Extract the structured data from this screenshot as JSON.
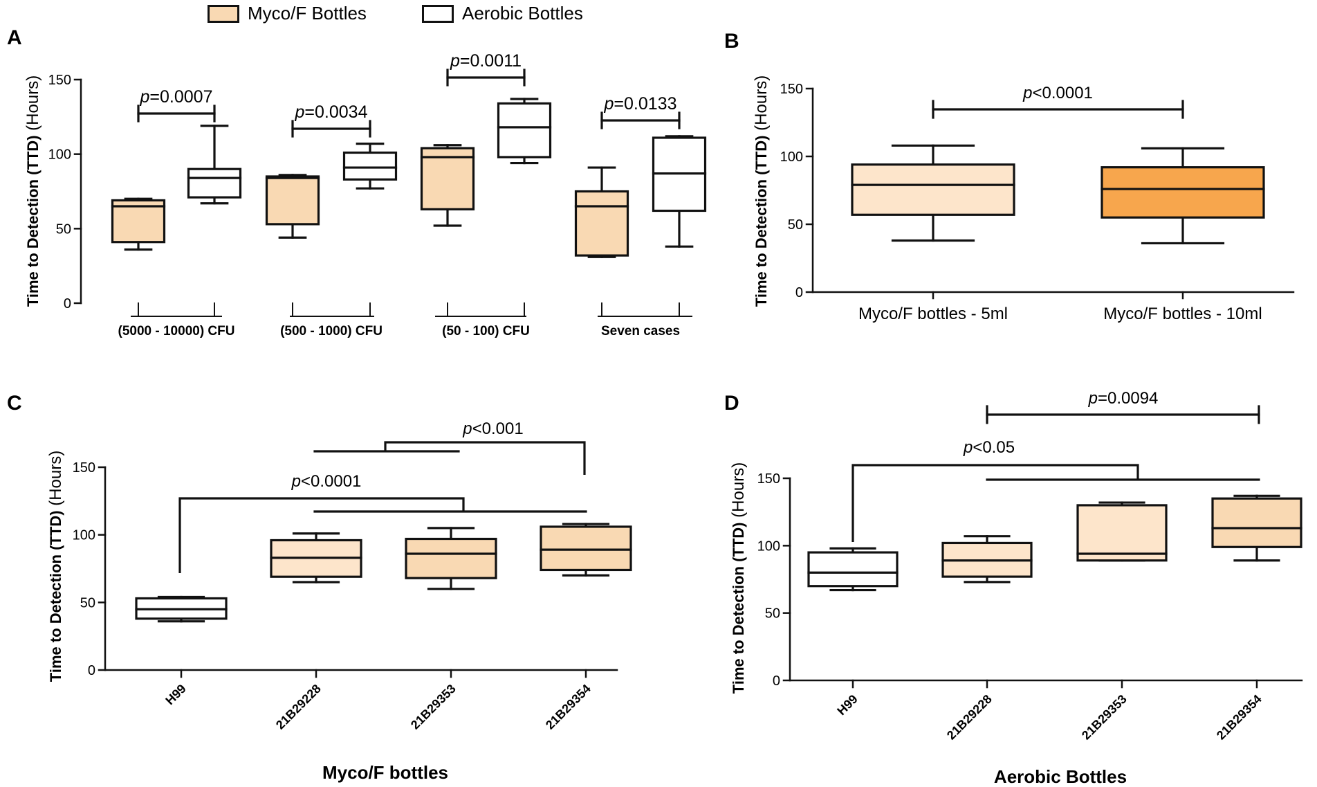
{
  "legend": [
    {
      "label": "Myco/F Bottles",
      "color": "#f9d9b3"
    },
    {
      "label": "Aerobic Bottles",
      "color": "#ffffff"
    }
  ],
  "panel_labels": [
    "A",
    "B",
    "C",
    "D"
  ],
  "colors": {
    "myco_light": "#fde5cb",
    "myco_mid": "#f9d9b3",
    "myco_strong": "#f7a64d",
    "aerobic": "#ffffff",
    "stroke": "#111111"
  },
  "chart_data": [
    {
      "panel": "A",
      "type": "boxplot",
      "ylabel_bold": "Time to Detection (TTD)",
      "ylabel_unit": " (Hours)",
      "ylim": [
        0,
        150
      ],
      "yticks": [
        0,
        50,
        100,
        150
      ],
      "groups": [
        {
          "label": "(5000 - 10000) CFU",
          "p_value": "=0.0007",
          "boxes": [
            {
              "series": "Myco/F Bottles",
              "min": 36,
              "q1": 41,
              "median": 65,
              "q3": 69,
              "max": 70
            },
            {
              "series": "Aerobic Bottles",
              "min": 67,
              "q1": 71,
              "median": 84,
              "q3": 90,
              "max": 119
            }
          ]
        },
        {
          "label": "(500 - 1000) CFU",
          "p_value": "=0.0034",
          "boxes": [
            {
              "series": "Myco/F Bottles",
              "min": 44,
              "q1": 53,
              "median": 84,
              "q3": 85,
              "max": 86
            },
            {
              "series": "Aerobic Bottles",
              "min": 77,
              "q1": 83,
              "median": 91,
              "q3": 101,
              "max": 107
            }
          ]
        },
        {
          "label": "(50 - 100) CFU",
          "p_value": "=0.0011",
          "boxes": [
            {
              "series": "Myco/F Bottles",
              "min": 52,
              "q1": 63,
              "median": 98,
              "q3": 104,
              "max": 106
            },
            {
              "series": "Aerobic Bottles",
              "min": 94,
              "q1": 98,
              "median": 118,
              "q3": 134,
              "max": 137
            }
          ]
        },
        {
          "label": "Seven cases",
          "p_value": "=0.0133",
          "boxes": [
            {
              "series": "Myco/F Bottles",
              "min": 31,
              "q1": 32,
              "median": 65,
              "q3": 75,
              "max": 91
            },
            {
              "series": "Aerobic Bottles",
              "min": 38,
              "q1": 62,
              "median": 87,
              "q3": 111,
              "max": 112
            }
          ]
        }
      ]
    },
    {
      "panel": "B",
      "type": "boxplot",
      "ylabel_bold": "Time to Detection (TTD)",
      "ylabel_unit": " (Hours)",
      "ylim": [
        0,
        150
      ],
      "yticks": [
        0,
        50,
        100,
        150
      ],
      "categories": [
        "Myco/F bottles - 5ml",
        "Myco/F bottles - 10ml"
      ],
      "boxes": [
        {
          "min": 38,
          "q1": 57,
          "median": 79,
          "q3": 94,
          "max": 108
        },
        {
          "min": 36,
          "q1": 55,
          "median": 76,
          "q3": 92,
          "max": 106
        }
      ],
      "p_value": "<0.0001"
    },
    {
      "panel": "C",
      "type": "boxplot",
      "ylabel_bold": "Time to Detection (TTD)",
      "ylabel_unit": " (Hours)",
      "xlabel": "Myco/F bottles",
      "ylim": [
        0,
        150
      ],
      "yticks": [
        0,
        50,
        100,
        150
      ],
      "categories": [
        "H99",
        "21B29228",
        "21B29353",
        "21B29354"
      ],
      "boxes": [
        {
          "min": 36,
          "q1": 38,
          "median": 45,
          "q3": 53,
          "max": 54
        },
        {
          "min": 65,
          "q1": 69,
          "median": 83,
          "q3": 96,
          "max": 101
        },
        {
          "min": 60,
          "q1": 68,
          "median": 86,
          "q3": 97,
          "max": 105
        },
        {
          "min": 70,
          "q1": 74,
          "median": 89,
          "q3": 106,
          "max": 108
        }
      ],
      "p_values": [
        "<0.0001",
        "<0.001"
      ]
    },
    {
      "panel": "D",
      "type": "boxplot",
      "ylabel_bold": "Time to Detection (TTD)",
      "ylabel_unit": " (Hours)",
      "xlabel": "Aerobic Bottles",
      "ylim": [
        0,
        150
      ],
      "yticks": [
        0,
        50,
        100,
        150
      ],
      "categories": [
        "H99",
        "21B29228",
        "21B29353",
        "21B29354"
      ],
      "boxes": [
        {
          "min": 67,
          "q1": 70,
          "median": 80,
          "q3": 95,
          "max": 98
        },
        {
          "min": 73,
          "q1": 77,
          "median": 89,
          "q3": 102,
          "max": 107
        },
        {
          "min": 89,
          "q1": 89,
          "median": 94,
          "q3": 130,
          "max": 132
        },
        {
          "min": 89,
          "q1": 99,
          "median": 113,
          "q3": 135,
          "max": 137
        }
      ],
      "p_values": [
        "<0.05",
        "=0.0094"
      ]
    }
  ]
}
